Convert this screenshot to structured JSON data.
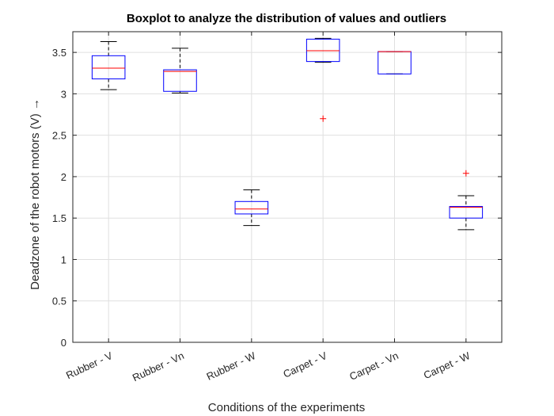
{
  "chart_data": {
    "type": "box",
    "title": "Boxplot to analyze the distribution of values and outliers",
    "xlabel": "Conditions of the experiments",
    "ylabel": "Deadzone of the robot motors (V) →",
    "categories": [
      "Rubber - V",
      "Rubber - Vn",
      "Rubber - W",
      "Carpet - V",
      "Carpet - Vn",
      "Carpet - W"
    ],
    "ylim": [
      0,
      3.75
    ],
    "yticks": [
      "0",
      "0.5",
      "1",
      "1.5",
      "2",
      "2.5",
      "3",
      "3.5"
    ],
    "ytick_values": [
      0,
      0.5,
      1,
      1.5,
      2,
      2.5,
      3,
      3.5
    ],
    "grid": true,
    "series": [
      {
        "category": "Rubber - V",
        "whisker_low": 3.05,
        "q1": 3.18,
        "median": 3.31,
        "q3": 3.46,
        "whisker_high": 3.63,
        "outliers": []
      },
      {
        "category": "Rubber - Vn",
        "whisker_low": 3.01,
        "q1": 3.03,
        "median": 3.27,
        "q3": 3.29,
        "whisker_high": 3.55,
        "outliers": []
      },
      {
        "category": "Rubber - W",
        "whisker_low": 1.41,
        "q1": 1.55,
        "median": 1.61,
        "q3": 1.7,
        "whisker_high": 1.84,
        "outliers": []
      },
      {
        "category": "Carpet - V",
        "whisker_low": 3.38,
        "q1": 3.39,
        "median": 3.52,
        "q3": 3.66,
        "whisker_high": 3.67,
        "outliers": [
          2.7
        ]
      },
      {
        "category": "Carpet - Vn",
        "whisker_low": 3.24,
        "q1": 3.24,
        "median": 3.51,
        "q3": 3.51,
        "whisker_high": 3.51,
        "outliers": []
      },
      {
        "category": "Carpet - W",
        "whisker_low": 1.36,
        "q1": 1.5,
        "median": 1.63,
        "q3": 1.64,
        "whisker_high": 1.77,
        "outliers": [
          2.04
        ]
      }
    ],
    "colors": {
      "box": "#0000ff",
      "median": "#ff0000",
      "whisker": "#000000",
      "outlier": "#ff0000",
      "grid": "#e0e0e0",
      "axis": "#262626"
    }
  }
}
